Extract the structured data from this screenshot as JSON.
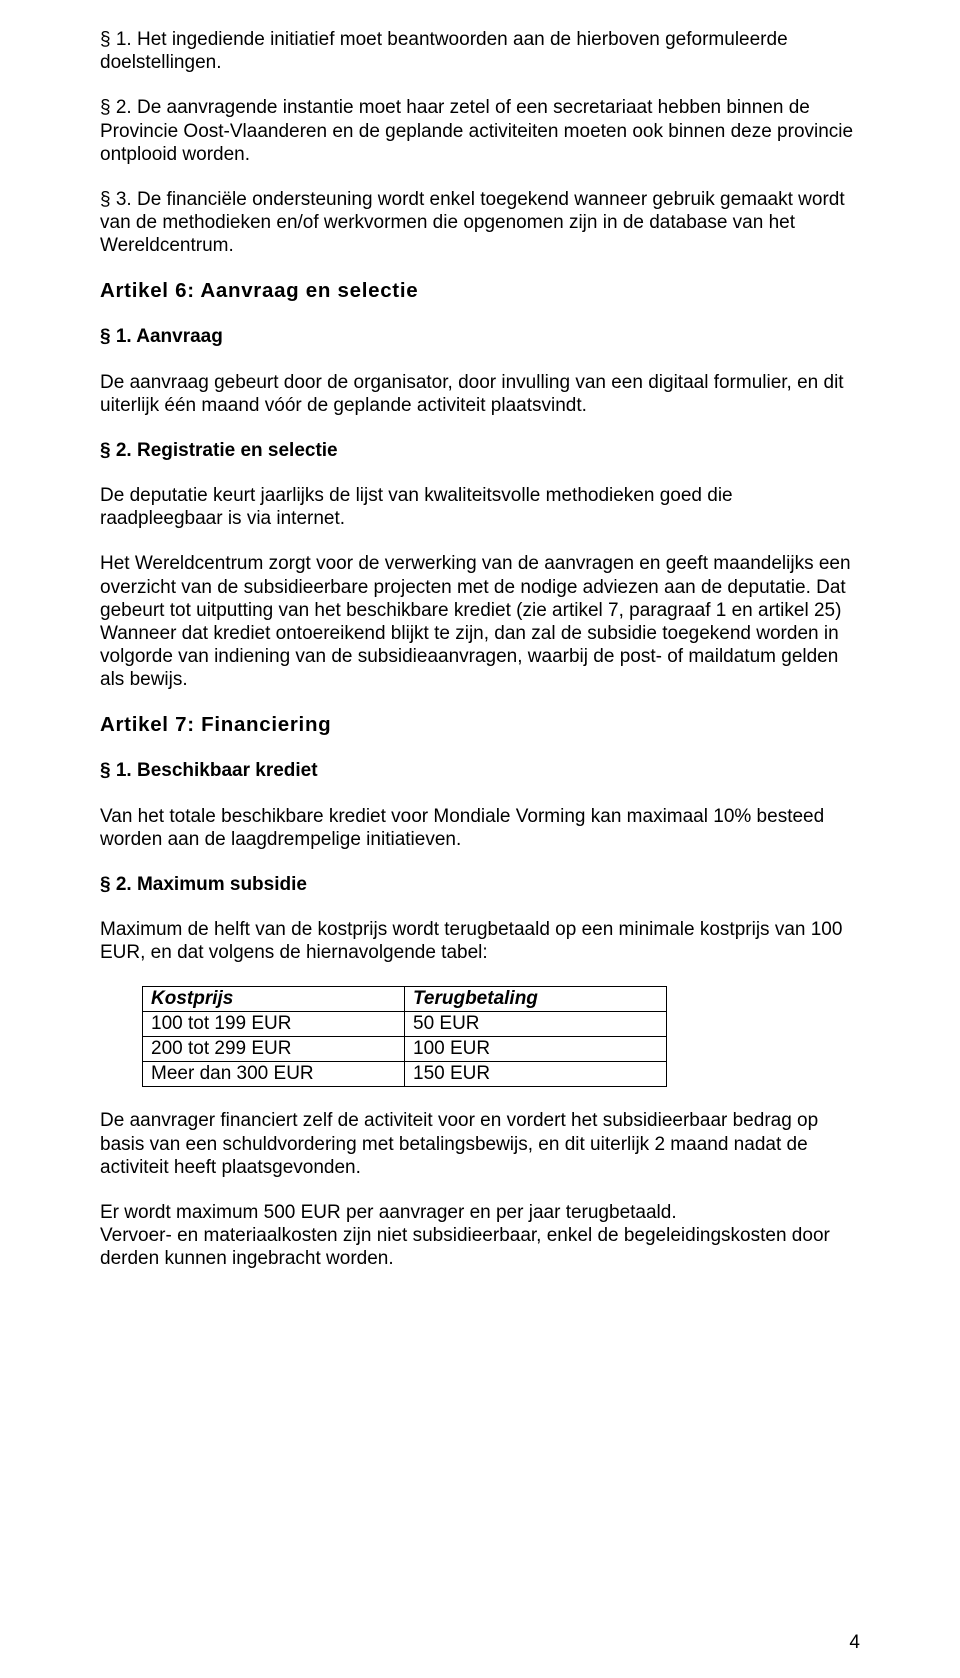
{
  "paragraphs": {
    "p1": "§ 1. Het ingediende initiatief moet beantwoorden aan de hierboven geformuleerde doelstellingen.",
    "p2": "§ 2. De aanvragende instantie moet haar zetel of een secretariaat hebben binnen de Provincie Oost-Vlaanderen en de geplande activiteiten moeten ook binnen deze provincie ontplooid worden.",
    "p3": "§ 3. De financiële ondersteuning wordt enkel toegekend wanneer gebruik gemaakt wordt van de methodieken en/of werkvormen die opgenomen zijn in de database van het Wereldcentrum."
  },
  "art6": {
    "title": "Artikel 6: Aanvraag en selectie",
    "s1_title": "§ 1. Aanvraag",
    "s1_body": "De aanvraag gebeurt door de organisator, door invulling van een digitaal formulier, en dit uiterlijk één maand vóór de geplande activiteit plaatsvindt.",
    "s2_title": "§ 2. Registratie en selectie",
    "s2_body1": "De deputatie keurt jaarlijks de lijst van kwaliteitsvolle methodieken goed die raadpleegbaar is via internet.",
    "s2_body2": "Het Wereldcentrum zorgt voor de verwerking van de aanvragen en geeft maandelijks een overzicht van de subsidieerbare projecten met de nodige adviezen aan de deputatie. Dat gebeurt tot uitputting van het beschikbare krediet (zie artikel 7, paragraaf 1 en artikel 25) Wanneer dat krediet ontoereikend blijkt te zijn, dan zal de subsidie toegekend worden in volgorde van indiening van de subsidieaanvragen, waarbij de post- of maildatum gelden als bewijs."
  },
  "art7": {
    "title": "Artikel 7: Financiering",
    "s1_title": "§ 1. Beschikbaar krediet",
    "s1_body": "Van het totale beschikbare krediet voor Mondiale Vorming kan maximaal 10% besteed worden aan de laagdrempelige initiatieven.",
    "s2_title": "§ 2. Maximum subsidie",
    "s2_body": "Maximum de helft van de kostprijs wordt terugbetaald op een minimale kostprijs van 100 EUR, en dat volgens de hiernavolgende tabel:",
    "table": {
      "columns": [
        "Kostprijs",
        "Terugbetaling"
      ],
      "rows": [
        [
          "100 tot 199 EUR",
          "50 EUR"
        ],
        [
          "200 tot 299 EUR",
          "100 EUR"
        ],
        [
          "Meer dan 300 EUR",
          "150 EUR"
        ]
      ]
    },
    "after1": "De aanvrager financiert zelf de activiteit voor en vordert het subsidieerbaar bedrag op basis van een schuldvordering met betalingsbewijs, en dit uiterlijk 2 maand nadat de activiteit heeft plaatsgevonden.",
    "after2": "Er wordt maximum 500 EUR per aanvrager en per jaar terugbetaald.\nVervoer- en materiaalkosten zijn niet subsidieerbaar, enkel de begeleidingskosten door derden kunnen ingebracht worden."
  },
  "page_number": "4"
}
